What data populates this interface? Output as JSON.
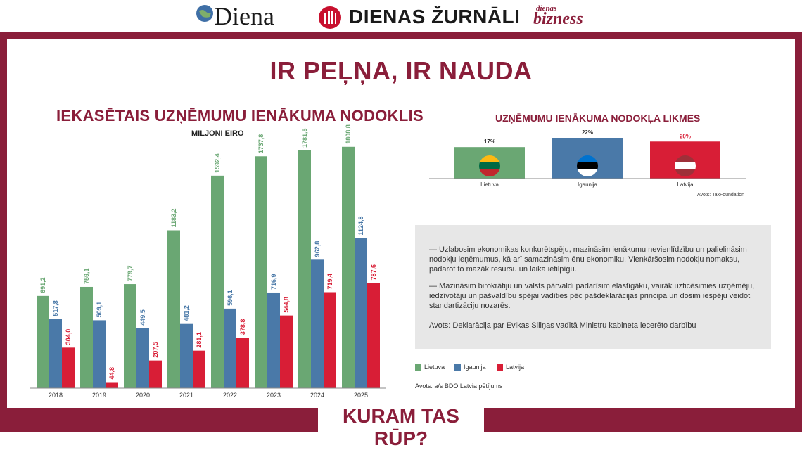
{
  "header": {
    "brand_diena": "Diena",
    "brand_dienas_zurnali": "DIENAS ŽURNĀLI",
    "brand_db_small": "dienas",
    "brand_db": "bizness"
  },
  "main_title": "IR PEĻŅA, IR NAUDA",
  "bottom_title": "KURAM TAS RŪP?",
  "colors": {
    "lietuva": "#6aa773",
    "igaunija": "#4a79a8",
    "latvija": "#d81e36",
    "accent": "#8a1e3a"
  },
  "chart_data": [
    {
      "type": "bar",
      "title": "IEKASĒTAIS UZŅĒMUMU IENĀKUMA NODOKLIS",
      "subtitle": "MILJONI EIRO",
      "categories": [
        "2018",
        "2019",
        "2020",
        "2021",
        "2022",
        "2023",
        "2024",
        "2025"
      ],
      "series": [
        {
          "name": "Lietuva",
          "values": [
            691.2,
            759.1,
            779.7,
            1183.2,
            1592.4,
            1737.8,
            1781.5,
            1808.8
          ],
          "labels": [
            "691,2",
            "759,1",
            "779,7",
            "1183,2",
            "1592,4",
            "1737,8",
            "1781,5",
            "1808,8"
          ]
        },
        {
          "name": "Igaunija",
          "values": [
            517.8,
            509.1,
            449.5,
            481.2,
            596.1,
            716.9,
            962.8,
            1124.8
          ],
          "labels": [
            "517,8",
            "509,1",
            "449,5",
            "481,2",
            "596,1",
            "716,9",
            "962,8",
            "1124,8"
          ]
        },
        {
          "name": "Latvija",
          "values": [
            304.0,
            44.8,
            207.5,
            281.1,
            378.8,
            544.8,
            719.4,
            787.6
          ],
          "labels": [
            "304,0",
            "44,8",
            "207,5",
            "281,1",
            "378,8",
            "544,8",
            "719,4",
            "787,6"
          ]
        }
      ],
      "ylim": [
        0,
        1950
      ],
      "legend": [
        "Lietuva",
        "Igaunija",
        "Latvija"
      ],
      "source": "Avots: a/s BDO Latvia pētījums"
    },
    {
      "type": "bar",
      "title": "UZŅĒMUMU IENĀKUMA NODOKĻA LIKMES",
      "categories": [
        "Lietuva",
        "Igaunija",
        "Latvija"
      ],
      "values": [
        17,
        22,
        20
      ],
      "labels": [
        "17%",
        "22%",
        "20%"
      ],
      "ylim": [
        0,
        22
      ],
      "source": "Avots: TaxFoundation"
    }
  ],
  "text_box": {
    "p1": "— Uzlabosim ekonomikas konkurētspēju, mazināsim ienākumu nevienlīdzību un palielināsim nodokļu ieņēmumus, kā arī samazināsim ēnu ekonomiku. Vienkāršosim nodokļu nomaksu, padarot to mazāk resursu un laika ietilpīgu.",
    "p2": "— Mazināsim birokrātiju un valsts pārvaldi padarīsim elastīgāku, vairāk uzticēsimies uzņēmēju, iedzīvotāju un pašvaldību spējai vadīties pēc pašdeklarācijas principa un dosim iespēju veidot standartizāciju nozarēs.",
    "source": "Avots: Deklarācija par Evikas Siliņas vadītā Ministru kabineta iecerēto darbību"
  }
}
